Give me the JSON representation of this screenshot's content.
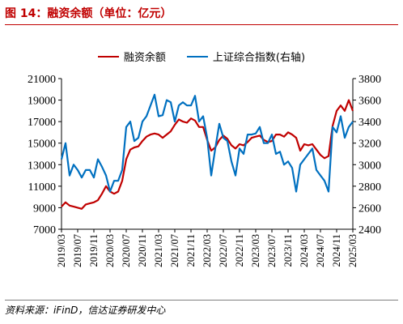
{
  "figure": {
    "title": "图 14：融资余额（单位：亿元）",
    "source": "资料来源：iFinD，信达证券研发中心"
  },
  "chart_data": {
    "type": "line",
    "title": "",
    "xlabel": "",
    "ylabel": "",
    "x_tick_labels": [
      "2019/03",
      "2019/07",
      "2019/11",
      "2020/03",
      "2020/07",
      "2020/11",
      "2021/03",
      "2021/07",
      "2021/11",
      "2022/03",
      "2022/07",
      "2022/11",
      "2023/03",
      "2023/07",
      "2023/11",
      "2024/03",
      "2024/07",
      "2024/11",
      "2025/03"
    ],
    "x_range": [
      "2019/03",
      "2025/03"
    ],
    "y_left": {
      "ylim": [
        7000,
        21000
      ],
      "ticks": [
        7000,
        9000,
        11000,
        13000,
        15000,
        17000,
        19000,
        21000
      ]
    },
    "y_right": {
      "ylim": [
        2400,
        3800
      ],
      "ticks": [
        2400,
        2600,
        2800,
        3000,
        3200,
        3400,
        3600,
        3800
      ]
    },
    "legend_position": "top-center",
    "grid": false,
    "series": [
      {
        "name": "融资余额",
        "axis": "left",
        "color": "#c00000",
        "points": [
          [
            "2019/03",
            9100
          ],
          [
            "2019/04",
            9500
          ],
          [
            "2019/05",
            9200
          ],
          [
            "2019/06",
            9100
          ],
          [
            "2019/07",
            9000
          ],
          [
            "2019/08",
            8900
          ],
          [
            "2019/09",
            9300
          ],
          [
            "2019/10",
            9400
          ],
          [
            "2019/11",
            9500
          ],
          [
            "2019/12",
            9700
          ],
          [
            "2020/01",
            10300
          ],
          [
            "2020/02",
            11000
          ],
          [
            "2020/03",
            10500
          ],
          [
            "2020/04",
            10300
          ],
          [
            "2020/05",
            10500
          ],
          [
            "2020/06",
            11500
          ],
          [
            "2020/07",
            13500
          ],
          [
            "2020/08",
            14400
          ],
          [
            "2020/09",
            14600
          ],
          [
            "2020/10",
            14700
          ],
          [
            "2020/11",
            15200
          ],
          [
            "2020/12",
            15600
          ],
          [
            "2021/01",
            15800
          ],
          [
            "2021/02",
            15900
          ],
          [
            "2021/03",
            15800
          ],
          [
            "2021/04",
            15500
          ],
          [
            "2021/05",
            15800
          ],
          [
            "2021/06",
            16100
          ],
          [
            "2021/07",
            16700
          ],
          [
            "2021/08",
            17200
          ],
          [
            "2021/09",
            17000
          ],
          [
            "2021/10",
            16900
          ],
          [
            "2021/11",
            17300
          ],
          [
            "2021/12",
            17100
          ],
          [
            "2022/01",
            16500
          ],
          [
            "2022/02",
            16500
          ],
          [
            "2022/03",
            15300
          ],
          [
            "2022/04",
            14300
          ],
          [
            "2022/05",
            14600
          ],
          [
            "2022/06",
            15300
          ],
          [
            "2022/07",
            15700
          ],
          [
            "2022/08",
            15400
          ],
          [
            "2022/09",
            14800
          ],
          [
            "2022/10",
            14500
          ],
          [
            "2022/11",
            14900
          ],
          [
            "2022/12",
            14800
          ],
          [
            "2023/01",
            15100
          ],
          [
            "2023/02",
            15500
          ],
          [
            "2023/03",
            15600
          ],
          [
            "2023/04",
            15700
          ],
          [
            "2023/05",
            15300
          ],
          [
            "2023/06",
            15100
          ],
          [
            "2023/07",
            15200
          ],
          [
            "2023/08",
            15800
          ],
          [
            "2023/09",
            15800
          ],
          [
            "2023/10",
            15600
          ],
          [
            "2023/11",
            16000
          ],
          [
            "2023/12",
            15800
          ],
          [
            "2024/01",
            15500
          ],
          [
            "2024/02",
            14300
          ],
          [
            "2024/03",
            14900
          ],
          [
            "2024/04",
            14800
          ],
          [
            "2024/05",
            14900
          ],
          [
            "2024/06",
            14400
          ],
          [
            "2024/07",
            13900
          ],
          [
            "2024/08",
            13600
          ],
          [
            "2024/09",
            13800
          ],
          [
            "2024/10",
            16600
          ],
          [
            "2024/11",
            18000
          ],
          [
            "2024/12",
            18500
          ],
          [
            "2025/01",
            18000
          ],
          [
            "2025/02",
            19000
          ],
          [
            "2025/03",
            18000
          ]
        ]
      },
      {
        "name": "上证综合指数(右轴)",
        "axis": "right",
        "color": "#0070c0",
        "points": [
          [
            "2019/03",
            3050
          ],
          [
            "2019/04",
            3200
          ],
          [
            "2019/05",
            2900
          ],
          [
            "2019/06",
            3000
          ],
          [
            "2019/07",
            2950
          ],
          [
            "2019/08",
            2880
          ],
          [
            "2019/09",
            2950
          ],
          [
            "2019/10",
            2950
          ],
          [
            "2019/11",
            2880
          ],
          [
            "2019/12",
            3050
          ],
          [
            "2020/01",
            2980
          ],
          [
            "2020/02",
            2900
          ],
          [
            "2020/03",
            2750
          ],
          [
            "2020/04",
            2850
          ],
          [
            "2020/05",
            2850
          ],
          [
            "2020/06",
            2950
          ],
          [
            "2020/07",
            3350
          ],
          [
            "2020/08",
            3400
          ],
          [
            "2020/09",
            3220
          ],
          [
            "2020/10",
            3250
          ],
          [
            "2020/11",
            3400
          ],
          [
            "2020/12",
            3450
          ],
          [
            "2021/01",
            3550
          ],
          [
            "2021/02",
            3650
          ],
          [
            "2021/03",
            3450
          ],
          [
            "2021/04",
            3460
          ],
          [
            "2021/05",
            3600
          ],
          [
            "2021/06",
            3580
          ],
          [
            "2021/07",
            3400
          ],
          [
            "2021/08",
            3550
          ],
          [
            "2021/09",
            3580
          ],
          [
            "2021/10",
            3550
          ],
          [
            "2021/11",
            3550
          ],
          [
            "2021/12",
            3640
          ],
          [
            "2022/01",
            3400
          ],
          [
            "2022/02",
            3450
          ],
          [
            "2022/03",
            3250
          ],
          [
            "2022/04",
            2900
          ],
          [
            "2022/05",
            3150
          ],
          [
            "2022/06",
            3380
          ],
          [
            "2022/07",
            3250
          ],
          [
            "2022/08",
            3220
          ],
          [
            "2022/09",
            3030
          ],
          [
            "2022/10",
            2900
          ],
          [
            "2022/11",
            3150
          ],
          [
            "2022/12",
            3100
          ],
          [
            "2023/01",
            3280
          ],
          [
            "2023/02",
            3280
          ],
          [
            "2023/03",
            3290
          ],
          [
            "2023/04",
            3350
          ],
          [
            "2023/05",
            3200
          ],
          [
            "2023/06",
            3200
          ],
          [
            "2023/07",
            3280
          ],
          [
            "2023/08",
            3100
          ],
          [
            "2023/09",
            3120
          ],
          [
            "2023/10",
            3000
          ],
          [
            "2023/11",
            3030
          ],
          [
            "2023/12",
            2970
          ],
          [
            "2024/01",
            2750
          ],
          [
            "2024/02",
            3000
          ],
          [
            "2024/03",
            3050
          ],
          [
            "2024/04",
            3100
          ],
          [
            "2024/05",
            3150
          ],
          [
            "2024/06",
            2950
          ],
          [
            "2024/07",
            2900
          ],
          [
            "2024/08",
            2850
          ],
          [
            "2024/09",
            2750
          ],
          [
            "2024/10",
            3350
          ],
          [
            "2024/11",
            3300
          ],
          [
            "2024/12",
            3450
          ],
          [
            "2025/01",
            3250
          ],
          [
            "2025/02",
            3350
          ],
          [
            "2025/03",
            3400
          ]
        ]
      }
    ]
  }
}
